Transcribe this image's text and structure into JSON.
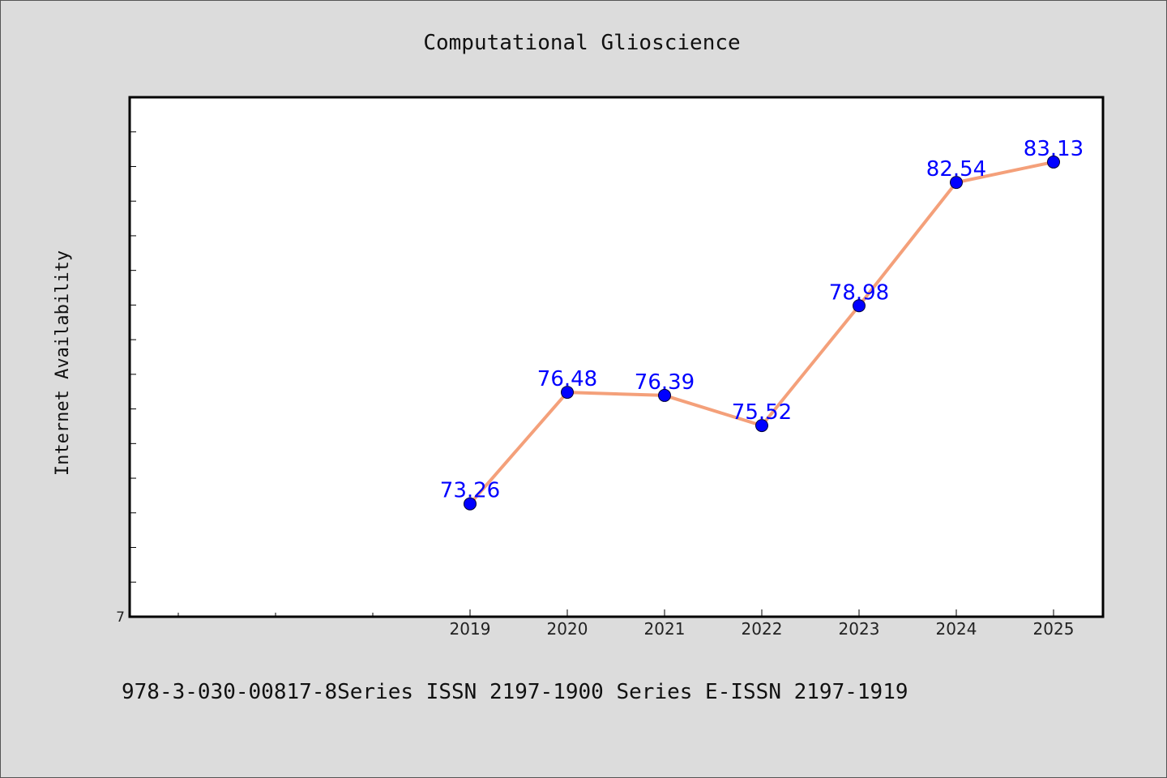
{
  "chart_data": {
    "type": "line",
    "title": "Computational Glioscience",
    "xlabel": "",
    "ylabel": "Internet Availability",
    "categories": [
      "2019",
      "2020",
      "2021",
      "2022",
      "2023",
      "2024",
      "2025"
    ],
    "series": [
      {
        "values": [
          73.26,
          76.48,
          76.39,
          75.52,
          78.98,
          82.54,
          83.13
        ],
        "labels": [
          "73.26",
          "76.48",
          "76.39",
          "75.52",
          "78.98",
          "82.54",
          "83.13"
        ],
        "color": "#f4a07a",
        "marker_color": "#0000ff"
      }
    ],
    "ylim": [
      70,
      85
    ],
    "ytick_labels": [
      "7"
    ],
    "x_empty_slots": 3,
    "grid": false,
    "data_label_color": "#0000ff"
  },
  "footer": {
    "text": "978-3-030-00817-8Series ISSN 2197-1900 Series E-ISSN 2197-1919"
  }
}
